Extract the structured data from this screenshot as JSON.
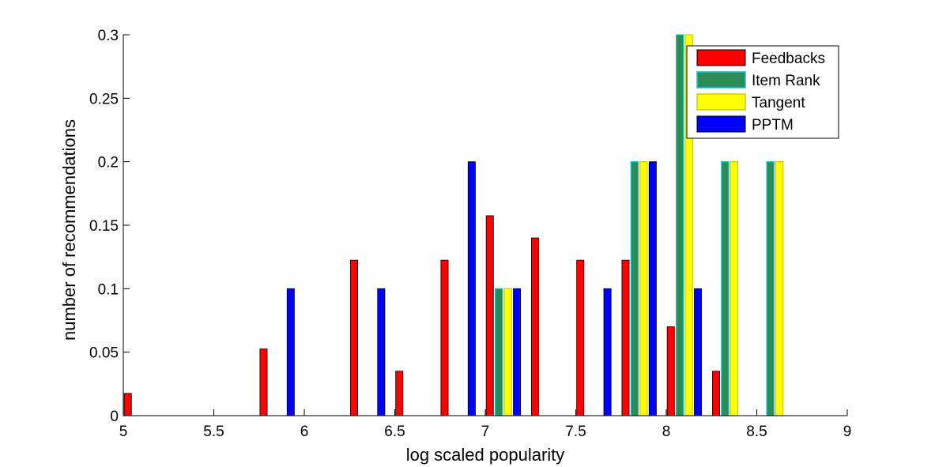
{
  "chart_data": {
    "type": "bar",
    "xlabel": "log scaled popularity",
    "ylabel": "number of recommendations",
    "xlim": [
      5,
      9
    ],
    "ylim": [
      0,
      0.3
    ],
    "x_ticks": [
      5,
      5.5,
      6,
      6.5,
      7,
      7.5,
      8,
      8.5,
      9
    ],
    "x_tick_labels": [
      "5",
      "5.5",
      "6",
      "6.5",
      "7",
      "7.5",
      "8",
      "8.5",
      "9"
    ],
    "y_ticks": [
      0,
      0.05,
      0.1,
      0.15,
      0.2,
      0.25,
      0.3
    ],
    "y_tick_labels": [
      "0",
      "0.05",
      "0.1",
      "0.15",
      "0.2",
      "0.25",
      "0.3"
    ],
    "bin_centers": [
      5.1,
      5.35,
      5.6,
      5.85,
      6.1,
      6.35,
      6.6,
      6.85,
      7.1,
      7.35,
      7.6,
      7.85,
      8.1,
      8.35,
      8.6,
      8.85
    ],
    "bar_width": 0.04,
    "legend_position": "top-right",
    "grid": false,
    "series": [
      {
        "name": "Feedbacks",
        "color": "#ff0000",
        "offset": -0.075,
        "values": [
          0.0175,
          0,
          0,
          0.0525,
          0,
          0.1225,
          0.035,
          0.1225,
          0.1575,
          0.14,
          0.1225,
          0.1225,
          0.07,
          0.035,
          0,
          0
        ]
      },
      {
        "name": "Item Rank",
        "color": "#2e8b57",
        "edge_color": "#00cccc",
        "offset": -0.025,
        "values": [
          0,
          0,
          0,
          0,
          0,
          0,
          0,
          0,
          0.1,
          0,
          0,
          0.2,
          0.3,
          0.2,
          0.2,
          0
        ]
      },
      {
        "name": "Tangent",
        "color": "#ffff00",
        "edge_color": "#cccc00",
        "offset": 0.025,
        "values": [
          0,
          0,
          0,
          0,
          0,
          0,
          0,
          0,
          0.1,
          0,
          0,
          0.2,
          0.3,
          0.2,
          0.2,
          0
        ]
      },
      {
        "name": "PPTM",
        "color": "#0000ff",
        "offset": 0.075,
        "values": [
          0,
          0,
          0,
          0.1,
          0,
          0.1,
          0,
          0.2,
          0.1,
          0,
          0.1,
          0.2,
          0.1,
          0,
          0,
          0
        ]
      }
    ]
  }
}
